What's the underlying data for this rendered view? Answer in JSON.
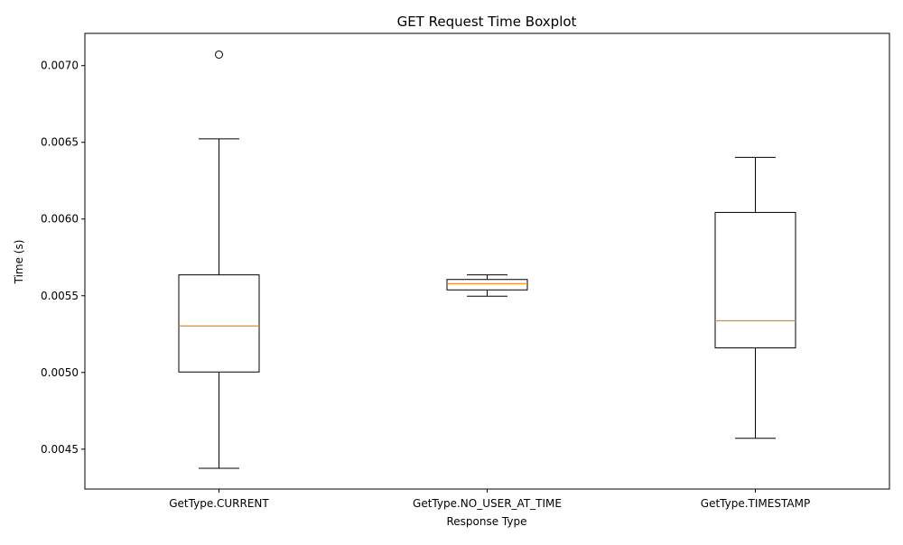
{
  "chart_data": {
    "type": "boxplot",
    "title": "GET Request Time Boxplot",
    "xlabel": "Response Type",
    "ylabel": "Time (s)",
    "ylim": [
      0.00424,
      0.00721
    ],
    "yticks": [
      0.0045,
      0.005,
      0.0055,
      0.006,
      0.0065,
      0.007
    ],
    "ytick_labels": [
      "0.0045",
      "0.0050",
      "0.0055",
      "0.0060",
      "0.0065",
      "0.0070"
    ],
    "grid": false,
    "categories": [
      "GetType.CURRENT",
      "GetType.NO_USER_AT_TIME",
      "GetType.TIMESTAMP"
    ],
    "boxes": [
      {
        "category": "GetType.CURRENT",
        "whisker_low": 0.004375,
        "q1": 0.005003,
        "median": 0.005303,
        "q3": 0.005636,
        "whisker_high": 0.006523,
        "outliers": [
          0.007072
        ]
      },
      {
        "category": "GetType.NO_USER_AT_TIME",
        "whisker_low": 0.005497,
        "q1": 0.005538,
        "median": 0.005579,
        "q3": 0.005606,
        "whisker_high": 0.005636,
        "outliers": []
      },
      {
        "category": "GetType.TIMESTAMP",
        "whisker_low": 0.004571,
        "q1": 0.00516,
        "median": 0.005337,
        "q3": 0.006043,
        "whisker_high": 0.006402,
        "outliers": []
      }
    ],
    "colors": {
      "box": "#000000",
      "median": "#ff7f0e",
      "whisker": "#000000",
      "outlier": "#000000"
    }
  }
}
